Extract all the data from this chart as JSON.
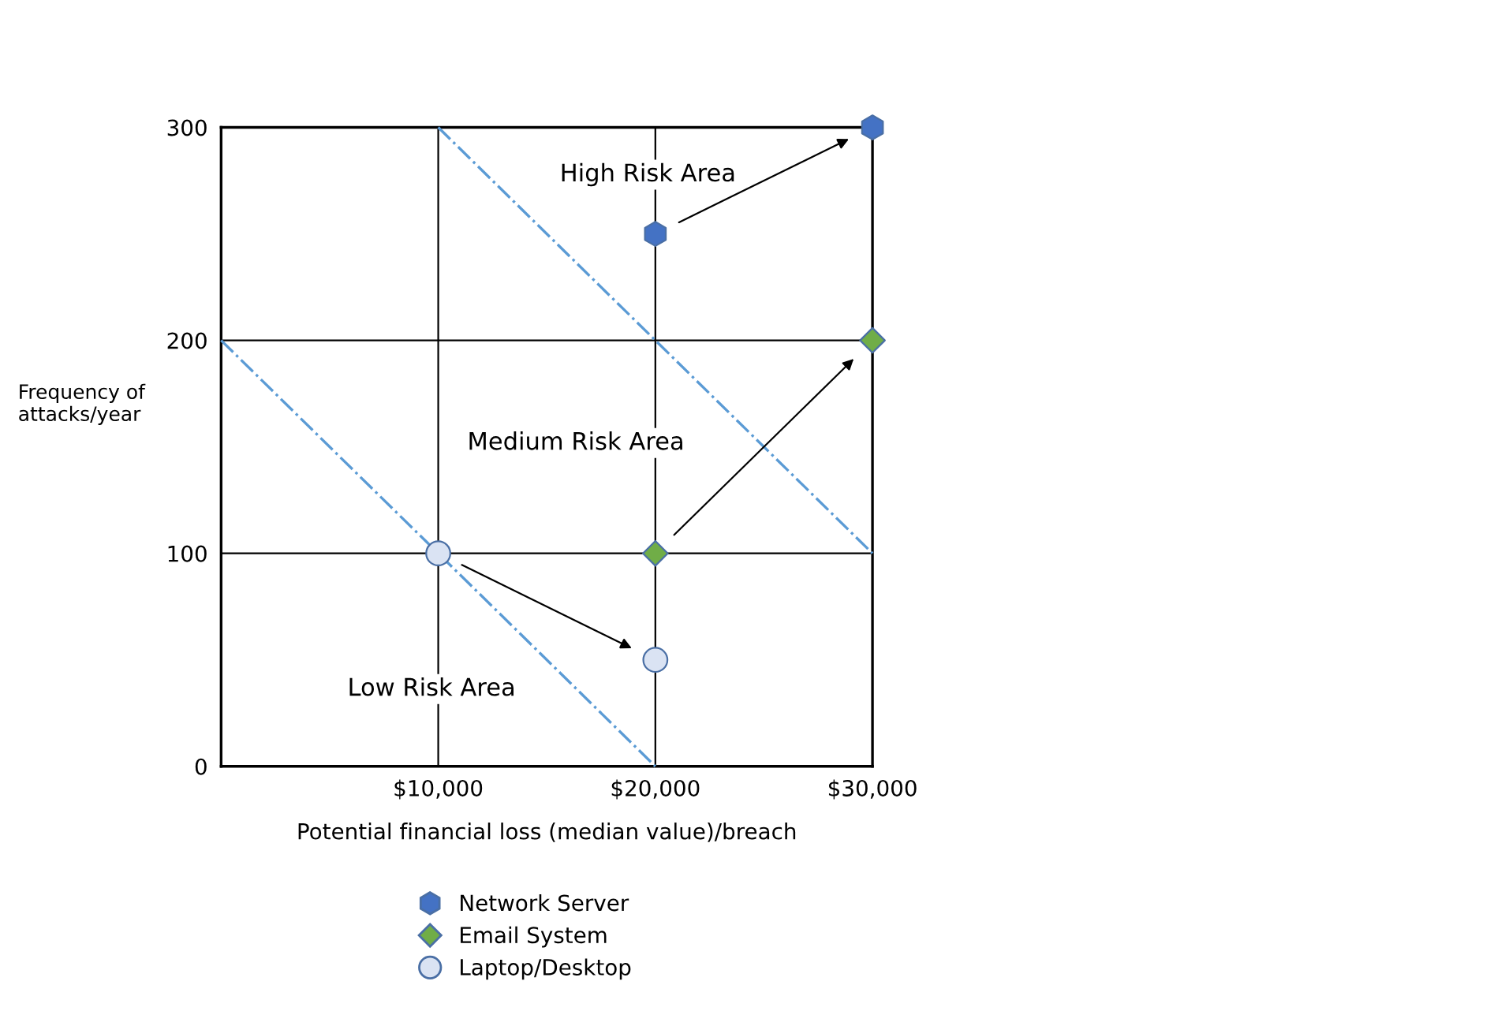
{
  "chart_data": {
    "type": "scatter",
    "xlabel": "Potential financial loss (median value)/breach",
    "ylabel": "Frequency of\nattacks/year",
    "series": [
      {
        "name": "Network Server",
        "color": "#4472c4",
        "x": [
          20000,
          30000
        ],
        "values": [
          250,
          300
        ]
      },
      {
        "name": "Email System",
        "color": "#70ad47",
        "marker": "diamond",
        "x": [
          20000,
          30000
        ],
        "values": [
          100,
          200
        ]
      },
      {
        "name": "Laptop/Desktop",
        "color": "#dae3f3",
        "marker": "circle",
        "x": [
          10000,
          20000
        ],
        "values": [
          100,
          50
        ]
      },
      {
        "type": "line",
        "color": "#5b9bd5",
        "line_style": "dashdot",
        "x": [
          0,
          20000
        ],
        "values": [
          200,
          0
        ]
      },
      {
        "type": "line",
        "color": "#5b9bd5",
        "line_style": "dashdot",
        "x": [
          10000,
          30000
        ],
        "values": [
          300,
          100
        ]
      }
    ],
    "annotations": [
      "High Risk Area",
      "Medium Risk Area",
      "Low Risk Area"
    ],
    "xlim": [
      0,
      30000
    ],
    "ylim": [
      0,
      300
    ],
    "xticks": [
      {
        "value": 10000,
        "label": "$10,000"
      },
      {
        "value": 20000,
        "label": "$20,000"
      },
      {
        "value": 30000,
        "label": "$30,000"
      }
    ],
    "yticks": [
      0,
      100,
      200,
      300
    ],
    "grid": true,
    "legend": "bottom"
  }
}
